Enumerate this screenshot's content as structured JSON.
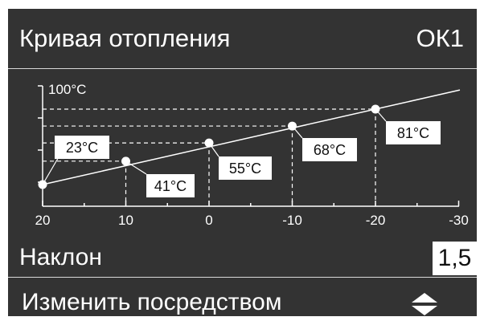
{
  "header": {
    "title": "Кривая отопления",
    "circuit": "ОК1"
  },
  "chart_data": {
    "type": "line",
    "ylabel": "100°C",
    "x_ticks": [
      "20",
      "10",
      "0",
      "-10",
      "-20",
      "-30"
    ],
    "xlim": [
      20,
      -30
    ],
    "points": [
      {
        "x": 20,
        "y": 23,
        "label": "23°C"
      },
      {
        "x": 10,
        "y": 41,
        "label": "41°C"
      },
      {
        "x": 0,
        "y": 55,
        "label": "55°C"
      },
      {
        "x": -10,
        "y": 68,
        "label": "68°C"
      },
      {
        "x": -20,
        "y": 81,
        "label": "81°C"
      }
    ]
  },
  "slope": {
    "label": "Наклон",
    "value": "1,5"
  },
  "footer": {
    "change_label": "Изменить посредством",
    "icon": "up-down-arrows-icon"
  },
  "colors": {
    "background": "#333333",
    "foreground": "#ffffff",
    "value_box": "#ffffff"
  }
}
